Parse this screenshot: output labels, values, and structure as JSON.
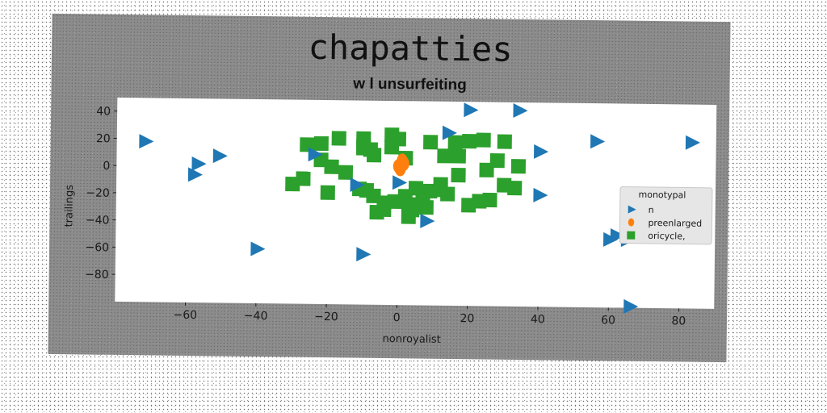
{
  "chart_data": {
    "type": "scatter",
    "title": "chapatties",
    "subtitle": "w l unsurfeiting",
    "xlabel": "nonroyalist",
    "ylabel": "trailings",
    "xlim": [
      -80,
      90
    ],
    "ylim": [
      -100,
      50
    ],
    "xticks": [
      -60,
      -40,
      -20,
      0,
      20,
      40,
      60,
      80
    ],
    "yticks": [
      40,
      20,
      0,
      -20,
      -40,
      -60,
      -80
    ],
    "grid": false,
    "legend": {
      "title": "monotypal",
      "position": "right"
    },
    "series": [
      {
        "name": "n",
        "marker": "triangle-right",
        "color": "#1f77b4",
        "points": [
          [
            -72,
            18
          ],
          [
            -57,
            2
          ],
          [
            -58,
            -6
          ],
          [
            -51,
            8
          ],
          [
            -40,
            -60
          ],
          [
            -24,
            10
          ],
          [
            -12,
            -12
          ],
          [
            -10,
            -63
          ],
          [
            0,
            -10
          ],
          [
            8,
            -38
          ],
          [
            14,
            27
          ],
          [
            20,
            44
          ],
          [
            34,
            44
          ],
          [
            40,
            14
          ],
          [
            40,
            -18
          ],
          [
            56,
            22
          ],
          [
            60,
            -50
          ],
          [
            62,
            -47
          ],
          [
            65,
            -50
          ],
          [
            66,
            -99
          ],
          [
            83,
            22
          ]
        ]
      },
      {
        "name": "preenlarged",
        "marker": "circle",
        "color": "#ff7f0e",
        "points": [
          [
            0,
            2
          ],
          [
            1,
            6
          ],
          [
            0.5,
            0
          ],
          [
            1.5,
            4
          ]
        ]
      },
      {
        "name": "oricycle,",
        "marker": "square",
        "color": "#2ca02c",
        "points": [
          [
            -30,
            -12
          ],
          [
            -27,
            -8
          ],
          [
            -26,
            17
          ],
          [
            -22,
            18
          ],
          [
            -22,
            6
          ],
          [
            -20,
            -18
          ],
          [
            -19,
            1
          ],
          [
            -17,
            22
          ],
          [
            -15,
            -3
          ],
          [
            -11,
            -15
          ],
          [
            -9,
            -16
          ],
          [
            -10,
            22
          ],
          [
            -10,
            17
          ],
          [
            -10,
            15
          ],
          [
            -8,
            14
          ],
          [
            -7,
            10
          ],
          [
            -7,
            -20
          ],
          [
            -4,
            -25
          ],
          [
            -6,
            -32
          ],
          [
            -4,
            -30
          ],
          [
            -2,
            25
          ],
          [
            -2,
            16
          ],
          [
            -1,
            -24
          ],
          [
            0,
            22
          ],
          [
            2,
            8
          ],
          [
            2,
            -20
          ],
          [
            3,
            -26
          ],
          [
            4,
            -30
          ],
          [
            3,
            -35
          ],
          [
            5,
            -14
          ],
          [
            7,
            -17
          ],
          [
            7,
            -22
          ],
          [
            8,
            -28
          ],
          [
            9,
            20
          ],
          [
            9,
            -16
          ],
          [
            12,
            -15
          ],
          [
            12,
            -11
          ],
          [
            13,
            10
          ],
          [
            14,
            -18
          ],
          [
            16,
            20
          ],
          [
            17,
            10
          ],
          [
            17,
            -4
          ],
          [
            20,
            -26
          ],
          [
            20,
            21
          ],
          [
            23,
            -23
          ],
          [
            24,
            22
          ],
          [
            25,
            0
          ],
          [
            26,
            -22
          ],
          [
            28,
            7
          ],
          [
            30,
            21
          ],
          [
            30,
            -11
          ],
          [
            33,
            -13
          ],
          [
            34,
            3
          ]
        ]
      }
    ]
  }
}
